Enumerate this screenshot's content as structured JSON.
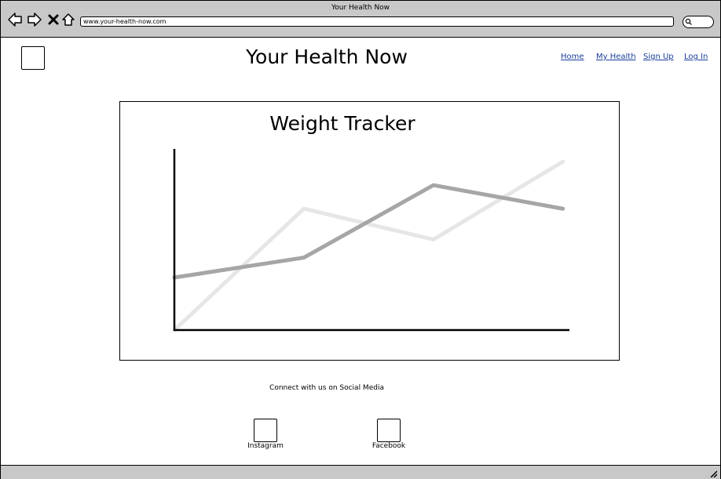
{
  "window": {
    "title": "Your Health Now",
    "address": "www.your-health-now.com"
  },
  "icons": {
    "back": "back-arrow-icon",
    "forward": "forward-arrow-icon",
    "stop": "close-icon",
    "home": "home-icon",
    "search": "search-icon"
  },
  "header": {
    "title": "Your Health Now",
    "nav": {
      "home": "Home",
      "my_health": "My Health",
      "sign_up": "Sign Up",
      "log_in": "Log In"
    }
  },
  "chart_data": {
    "type": "line",
    "title": "Weight Tracker",
    "xlabel": "",
    "ylabel": "",
    "x": [
      1,
      2,
      3,
      4
    ],
    "xlim": [
      1,
      4.05
    ],
    "ylim": [
      0,
      10
    ],
    "grid": false,
    "series": [
      {
        "color": "#e6e6e6",
        "values": [
          0,
          6.7,
          5.0,
          9.3
        ]
      },
      {
        "color": "#a6a6a6",
        "values": [
          2.9,
          4.0,
          8.0,
          6.7
        ]
      }
    ]
  },
  "footer": {
    "heading": "Connect with us on Social Media",
    "instagram": "Instagram",
    "facebook": "Facebook"
  },
  "colors": {
    "chrome": "#c8c8c8",
    "link": "#1a3e9a"
  }
}
